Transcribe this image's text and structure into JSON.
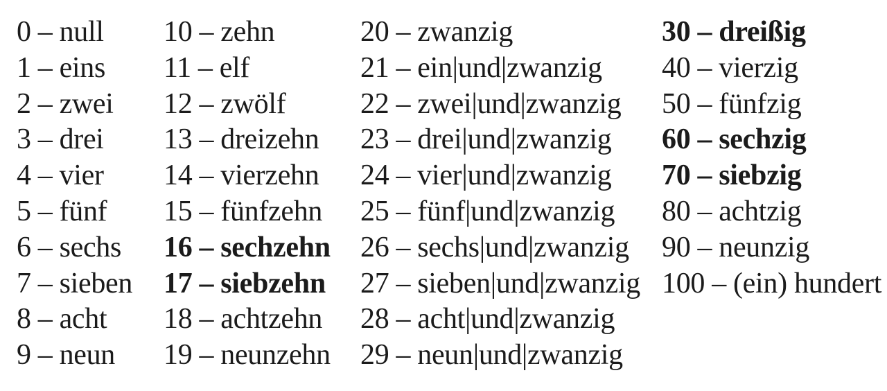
{
  "page": {
    "background": "#ffffff",
    "text_color": "#1b1b1b",
    "separator": "–"
  },
  "table": {
    "title": "german-numbers-0-100",
    "columns": [
      {
        "id": "units-0-9",
        "entries": [
          {
            "number": "0",
            "word": "null",
            "bold": false
          },
          {
            "number": "1",
            "word": "eins",
            "bold": false
          },
          {
            "number": "2",
            "word": "zwei",
            "bold": false
          },
          {
            "number": "3",
            "word": "drei",
            "bold": false
          },
          {
            "number": "4",
            "word": "vier",
            "bold": false
          },
          {
            "number": "5",
            "word": "fünf",
            "bold": false
          },
          {
            "number": "6",
            "word": "sechs",
            "bold": false
          },
          {
            "number": "7",
            "word": "sieben",
            "bold": false
          },
          {
            "number": "8",
            "word": "acht",
            "bold": false
          },
          {
            "number": "9",
            "word": "neun",
            "bold": false
          }
        ]
      },
      {
        "id": "teens-10-19",
        "entries": [
          {
            "number": "10",
            "word": "zehn",
            "bold": false
          },
          {
            "number": "11",
            "word": "elf",
            "bold": false
          },
          {
            "number": "12",
            "word": "zwölf",
            "bold": false
          },
          {
            "number": "13",
            "word": "dreizehn",
            "bold": false
          },
          {
            "number": "14",
            "word": "vierzehn",
            "bold": false
          },
          {
            "number": "15",
            "word": "fünfzehn",
            "bold": false
          },
          {
            "number": "16",
            "word": "sechzehn",
            "bold": true
          },
          {
            "number": "17",
            "word": "siebzehn",
            "bold": true
          },
          {
            "number": "18",
            "word": "achtzehn",
            "bold": false
          },
          {
            "number": "19",
            "word": "neunzehn",
            "bold": false
          }
        ]
      },
      {
        "id": "twenties-20-29",
        "entries": [
          {
            "number": "20",
            "word": "zwanzig",
            "bold": false
          },
          {
            "number": "21",
            "word": "ein|und|zwanzig",
            "bold": false
          },
          {
            "number": "22",
            "word": "zwei|und|zwanzig",
            "bold": false
          },
          {
            "number": "23",
            "word": "drei|und|zwanzig",
            "bold": false
          },
          {
            "number": "24",
            "word": "vier|und|zwanzig",
            "bold": false
          },
          {
            "number": "25",
            "word": "fünf|und|zwanzig",
            "bold": false
          },
          {
            "number": "26",
            "word": "sechs|und|zwanzig",
            "bold": false
          },
          {
            "number": "27",
            "word": "sieben|und|zwanzig",
            "bold": false
          },
          {
            "number": "28",
            "word": "acht|und|zwanzig",
            "bold": false
          },
          {
            "number": "29",
            "word": "neun|und|zwanzig",
            "bold": false
          }
        ]
      },
      {
        "id": "tens-30-100",
        "entries": [
          {
            "number": "30",
            "word": "dreißig",
            "bold": true
          },
          {
            "number": "40",
            "word": "vierzig",
            "bold": false
          },
          {
            "number": "50",
            "word": "fünfzig",
            "bold": false
          },
          {
            "number": "60",
            "word": "sechzig",
            "bold": true
          },
          {
            "number": "70",
            "word": "siebzig",
            "bold": true
          },
          {
            "number": "80",
            "word": "achtzig",
            "bold": false
          },
          {
            "number": "90",
            "word": "neunzig",
            "bold": false
          },
          {
            "number": "100",
            "word": "(ein) hundert",
            "bold": false
          }
        ]
      }
    ]
  }
}
